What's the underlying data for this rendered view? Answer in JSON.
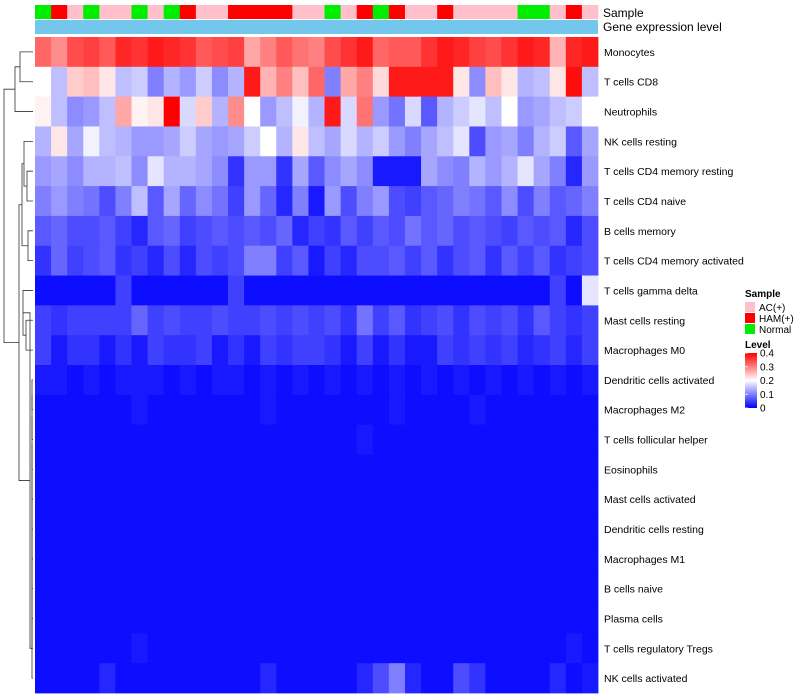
{
  "chart_data": {
    "type": "heatmap",
    "title": "",
    "annotation_labels": [
      "Sample",
      "Gene expression level"
    ],
    "sample_groups": [
      "Normal",
      "HAM(+)",
      "AC(+)",
      "Normal",
      "AC(+)",
      "AC(+)",
      "Normal",
      "AC(+)",
      "Normal",
      "HAM(+)",
      "AC(+)",
      "AC(+)",
      "HAM(+)",
      "HAM(+)",
      "HAM(+)",
      "HAM(+)",
      "AC(+)",
      "AC(+)",
      "Normal",
      "AC(+)",
      "HAM(+)",
      "Normal",
      "HAM(+)",
      "AC(+)",
      "AC(+)",
      "HAM(+)",
      "AC(+)",
      "AC(+)",
      "AC(+)",
      "AC(+)",
      "Normal",
      "Normal",
      "AC(+)",
      "HAM(+)",
      "AC(+)"
    ],
    "rows": [
      "Monocytes",
      "T cells CD8",
      "Neutrophils",
      "NK cells resting",
      "T cells CD4 memory resting",
      "T cells CD4 naive",
      "B cells memory",
      "T cells CD4 memory activated",
      "T cells gamma delta",
      "Mast cells resting",
      "Macrophages M0",
      "Dendritic cells activated",
      "Macrophages M2",
      "T cells follicular helper",
      "Eosinophils",
      "Mast cells activated",
      "Dendritic cells resting",
      "Macrophages M1",
      "B cells naive",
      "Plasma cells",
      "T cells regulatory  Tregs",
      "NK cells activated"
    ],
    "values": [
      [
        0.32,
        0.29,
        0.34,
        0.35,
        0.33,
        0.37,
        0.36,
        0.38,
        0.37,
        0.36,
        0.33,
        0.34,
        0.35,
        0.27,
        0.3,
        0.33,
        0.31,
        0.3,
        0.34,
        0.36,
        0.38,
        0.32,
        0.33,
        0.33,
        0.36,
        0.38,
        0.37,
        0.35,
        0.34,
        0.36,
        0.38,
        0.37,
        0.26,
        0.37,
        0.38
      ],
      [
        0.2,
        0.15,
        0.24,
        0.25,
        0.22,
        0.15,
        0.16,
        0.1,
        0.14,
        0.12,
        0.16,
        0.11,
        0.14,
        0.38,
        0.26,
        0.3,
        0.25,
        0.32,
        0.1,
        0.27,
        0.3,
        0.23,
        0.38,
        0.38,
        0.38,
        0.38,
        0.22,
        0.11,
        0.25,
        0.22,
        0.14,
        0.15,
        0.22,
        0.39,
        0.15
      ],
      [
        0.21,
        0.15,
        0.11,
        0.12,
        0.15,
        0.27,
        0.21,
        0.22,
        0.4,
        0.17,
        0.24,
        0.14,
        0.29,
        0.2,
        0.12,
        0.15,
        0.19,
        0.14,
        0.38,
        0.17,
        0.31,
        0.12,
        0.09,
        0.17,
        0.07,
        0.14,
        0.16,
        0.18,
        0.15,
        0.2,
        0.12,
        0.13,
        0.15,
        0.16,
        0.2
      ],
      [
        0.14,
        0.22,
        0.13,
        0.19,
        0.15,
        0.14,
        0.12,
        0.12,
        0.13,
        0.16,
        0.13,
        0.12,
        0.13,
        0.16,
        0.2,
        0.14,
        0.22,
        0.15,
        0.13,
        0.17,
        0.14,
        0.16,
        0.12,
        0.1,
        0.13,
        0.15,
        0.18,
        0.06,
        0.12,
        0.13,
        0.1,
        0.14,
        0.16,
        0.07,
        0.13
      ],
      [
        0.12,
        0.13,
        0.11,
        0.14,
        0.14,
        0.15,
        0.11,
        0.18,
        0.14,
        0.14,
        0.13,
        0.11,
        0.04,
        0.12,
        0.12,
        0.04,
        0.13,
        0.07,
        0.11,
        0.13,
        0.11,
        0.02,
        0.02,
        0.02,
        0.13,
        0.11,
        0.1,
        0.14,
        0.12,
        0.14,
        0.18,
        0.13,
        0.1,
        0.03,
        0.12
      ],
      [
        0.1,
        0.12,
        0.1,
        0.09,
        0.06,
        0.1,
        0.15,
        0.07,
        0.13,
        0.08,
        0.11,
        0.09,
        0.05,
        0.12,
        0.08,
        0.03,
        0.1,
        0.02,
        0.12,
        0.06,
        0.1,
        0.12,
        0.06,
        0.05,
        0.07,
        0.08,
        0.1,
        0.09,
        0.07,
        0.11,
        0.06,
        0.1,
        0.07,
        0.08,
        0.1
      ],
      [
        0.07,
        0.08,
        0.06,
        0.06,
        0.07,
        0.05,
        0.03,
        0.07,
        0.08,
        0.05,
        0.06,
        0.07,
        0.06,
        0.07,
        0.06,
        0.08,
        0.03,
        0.05,
        0.04,
        0.07,
        0.05,
        0.07,
        0.06,
        0.09,
        0.07,
        0.08,
        0.06,
        0.07,
        0.06,
        0.05,
        0.07,
        0.06,
        0.07,
        0.03,
        0.06
      ],
      [
        0.04,
        0.08,
        0.05,
        0.06,
        0.07,
        0.04,
        0.05,
        0.03,
        0.06,
        0.03,
        0.06,
        0.05,
        0.06,
        0.1,
        0.1,
        0.05,
        0.07,
        0.02,
        0.05,
        0.03,
        0.06,
        0.06,
        0.07,
        0.05,
        0.07,
        0.04,
        0.06,
        0.07,
        0.04,
        0.07,
        0.05,
        0.07,
        0.04,
        0.05,
        0.06
      ],
      [
        0.01,
        0.01,
        0.01,
        0.01,
        0.01,
        0.05,
        0.01,
        0.01,
        0.01,
        0.01,
        0.01,
        0.01,
        0.05,
        0.01,
        0.01,
        0.01,
        0.01,
        0.01,
        0.01,
        0.01,
        0.01,
        0.01,
        0.01,
        0.01,
        0.01,
        0.01,
        0.01,
        0.01,
        0.01,
        0.01,
        0.01,
        0.01,
        0.05,
        0.01,
        0.18
      ],
      [
        0.05,
        0.04,
        0.05,
        0.05,
        0.05,
        0.05,
        0.08,
        0.05,
        0.06,
        0.05,
        0.05,
        0.06,
        0.05,
        0.05,
        0.06,
        0.05,
        0.06,
        0.05,
        0.06,
        0.04,
        0.09,
        0.05,
        0.07,
        0.04,
        0.05,
        0.06,
        0.04,
        0.06,
        0.05,
        0.06,
        0.04,
        0.07,
        0.05,
        0.04,
        0.05
      ],
      [
        0.05,
        0.02,
        0.04,
        0.04,
        0.02,
        0.04,
        0.02,
        0.05,
        0.04,
        0.04,
        0.05,
        0.02,
        0.04,
        0.02,
        0.05,
        0.04,
        0.05,
        0.05,
        0.04,
        0.02,
        0.05,
        0.02,
        0.04,
        0.02,
        0.02,
        0.05,
        0.04,
        0.05,
        0.04,
        0.05,
        0.03,
        0.04,
        0.05,
        0.03,
        0.05
      ],
      [
        0.02,
        0.02,
        0.01,
        0.02,
        0.01,
        0.02,
        0.02,
        0.02,
        0.01,
        0.02,
        0.01,
        0.02,
        0.02,
        0.01,
        0.02,
        0.01,
        0.02,
        0.01,
        0.02,
        0.01,
        0.02,
        0.01,
        0.02,
        0.01,
        0.02,
        0.01,
        0.02,
        0.01,
        0.02,
        0.01,
        0.02,
        0.01,
        0.02,
        0.01,
        0.02
      ],
      [
        0.01,
        0.01,
        0.01,
        0.01,
        0.01,
        0.01,
        0.02,
        0.01,
        0.01,
        0.01,
        0.01,
        0.01,
        0.01,
        0.01,
        0.02,
        0.01,
        0.01,
        0.01,
        0.01,
        0.01,
        0.01,
        0.01,
        0.02,
        0.01,
        0.01,
        0.01,
        0.01,
        0.02,
        0.01,
        0.01,
        0.01,
        0.01,
        0.01,
        0.01,
        0.01
      ],
      [
        0.01,
        0.01,
        0.01,
        0.01,
        0.01,
        0.01,
        0.01,
        0.01,
        0.01,
        0.01,
        0.01,
        0.01,
        0.01,
        0.01,
        0.01,
        0.01,
        0.01,
        0.01,
        0.01,
        0.01,
        0.02,
        0.01,
        0.01,
        0.01,
        0.01,
        0.01,
        0.01,
        0.01,
        0.01,
        0.01,
        0.01,
        0.01,
        0.01,
        0.01,
        0.01
      ],
      [
        0.01,
        0.01,
        0.01,
        0.01,
        0.01,
        0.01,
        0.01,
        0.01,
        0.01,
        0.01,
        0.01,
        0.01,
        0.01,
        0.01,
        0.01,
        0.01,
        0.01,
        0.01,
        0.01,
        0.01,
        0.01,
        0.01,
        0.01,
        0.01,
        0.01,
        0.01,
        0.01,
        0.01,
        0.01,
        0.01,
        0.01,
        0.01,
        0.01,
        0.01,
        0.01
      ],
      [
        0.01,
        0.01,
        0.01,
        0.01,
        0.01,
        0.01,
        0.01,
        0.01,
        0.01,
        0.01,
        0.01,
        0.01,
        0.01,
        0.01,
        0.01,
        0.01,
        0.01,
        0.01,
        0.01,
        0.01,
        0.01,
        0.01,
        0.01,
        0.01,
        0.01,
        0.01,
        0.01,
        0.01,
        0.01,
        0.01,
        0.01,
        0.01,
        0.01,
        0.01,
        0.01
      ],
      [
        0.01,
        0.01,
        0.01,
        0.01,
        0.01,
        0.01,
        0.01,
        0.01,
        0.01,
        0.01,
        0.01,
        0.01,
        0.01,
        0.01,
        0.01,
        0.01,
        0.01,
        0.01,
        0.01,
        0.01,
        0.01,
        0.01,
        0.01,
        0.01,
        0.01,
        0.01,
        0.01,
        0.01,
        0.01,
        0.01,
        0.01,
        0.01,
        0.01,
        0.01,
        0.01
      ],
      [
        0.01,
        0.01,
        0.01,
        0.01,
        0.01,
        0.01,
        0.01,
        0.01,
        0.01,
        0.01,
        0.01,
        0.01,
        0.01,
        0.01,
        0.01,
        0.01,
        0.01,
        0.01,
        0.01,
        0.01,
        0.01,
        0.01,
        0.01,
        0.01,
        0.01,
        0.01,
        0.01,
        0.01,
        0.01,
        0.01,
        0.01,
        0.01,
        0.01,
        0.01,
        0.01
      ],
      [
        0.01,
        0.01,
        0.01,
        0.01,
        0.01,
        0.01,
        0.01,
        0.01,
        0.01,
        0.01,
        0.01,
        0.01,
        0.01,
        0.01,
        0.01,
        0.01,
        0.01,
        0.01,
        0.01,
        0.01,
        0.01,
        0.01,
        0.01,
        0.01,
        0.01,
        0.01,
        0.01,
        0.01,
        0.01,
        0.01,
        0.01,
        0.01,
        0.01,
        0.01,
        0.01
      ],
      [
        0.01,
        0.01,
        0.01,
        0.01,
        0.01,
        0.01,
        0.01,
        0.01,
        0.01,
        0.01,
        0.01,
        0.01,
        0.01,
        0.01,
        0.01,
        0.01,
        0.01,
        0.01,
        0.01,
        0.01,
        0.01,
        0.01,
        0.01,
        0.01,
        0.01,
        0.01,
        0.01,
        0.01,
        0.01,
        0.01,
        0.01,
        0.01,
        0.01,
        0.01,
        0.01
      ],
      [
        0.01,
        0.01,
        0.01,
        0.01,
        0.01,
        0.01,
        0.02,
        0.01,
        0.01,
        0.01,
        0.01,
        0.01,
        0.01,
        0.01,
        0.01,
        0.01,
        0.01,
        0.01,
        0.01,
        0.01,
        0.01,
        0.01,
        0.01,
        0.01,
        0.01,
        0.01,
        0.01,
        0.01,
        0.01,
        0.01,
        0.01,
        0.01,
        0.01,
        0.02,
        0.01
      ],
      [
        0.01,
        0.01,
        0.01,
        0.01,
        0.03,
        0.01,
        0.01,
        0.01,
        0.01,
        0.01,
        0.01,
        0.01,
        0.01,
        0.01,
        0.03,
        0.01,
        0.01,
        0.01,
        0.01,
        0.01,
        0.03,
        0.06,
        0.1,
        0.03,
        0.01,
        0.01,
        0.06,
        0.04,
        0.01,
        0.01,
        0.01,
        0.01,
        0.03,
        0.01,
        0.02
      ]
    ],
    "sample_legend": {
      "title": "Sample",
      "items": [
        {
          "label": "AC(+)",
          "color": "#ffc0cb"
        },
        {
          "label": "HAM(+)",
          "color": "#ff0000"
        },
        {
          "label": "Normal",
          "color": "#00ee00"
        }
      ]
    },
    "level_legend": {
      "title": "Level",
      "ticks": [
        "0.4",
        "0.3",
        "0.2",
        "0.1",
        "0"
      ],
      "range": [
        0,
        0.4
      ]
    },
    "expression_bar_color": "#74c7ec",
    "colorscale": {
      "low": "#0000ff",
      "mid": "#ffffff",
      "high": "#ff0000",
      "min": 0,
      "mid_value": 0.2,
      "max": 0.4
    },
    "dendrogram": "row-clustering",
    "legend_position": "right"
  }
}
